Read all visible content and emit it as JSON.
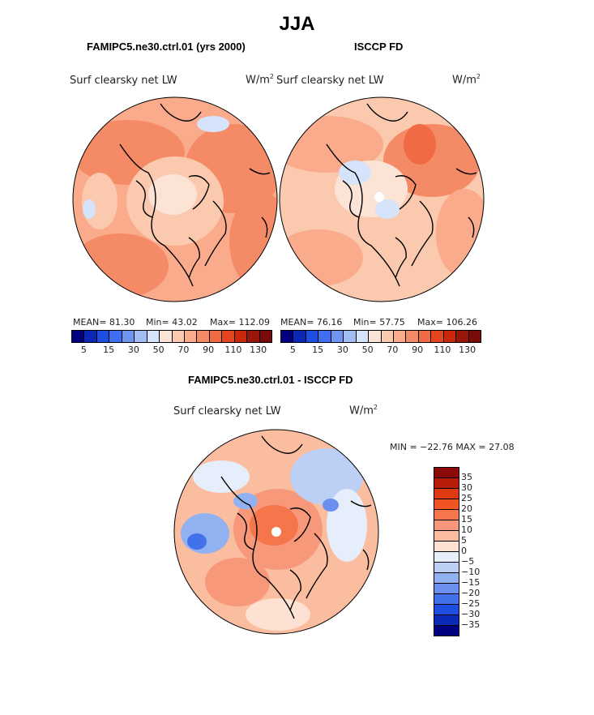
{
  "title": "JJA",
  "panels": [
    {
      "title": "FAMIPC5.ne30.ctrl.01 (yrs 2000)",
      "field_label": "Surf clearsky net LW",
      "units_base": "W/m",
      "units_exp": "2",
      "stats": {
        "mean": "MEAN=  81.30",
        "min": "Min=  43.02",
        "max": "Max= 112.09"
      },
      "colorbar_ticks": [
        "5",
        "15",
        "30",
        "50",
        "70",
        "90",
        "110",
        "130"
      ]
    },
    {
      "title": "ISCCP FD",
      "field_label": "Surf clearsky net LW",
      "units_base": "W/m",
      "units_exp": "2",
      "stats": {
        "mean": "MEAN=  76.16",
        "min": "Min=  57.75",
        "max": "Max= 106.26"
      },
      "colorbar_ticks": [
        "5",
        "15",
        "30",
        "50",
        "70",
        "90",
        "110",
        "130"
      ]
    }
  ],
  "difference": {
    "title": "FAMIPC5.ne30.ctrl.01 - ISCCP FD",
    "field_label": "Surf clearsky net LW",
    "units_base": "W/m",
    "units_exp": "2",
    "minmax": "MIN = −22.76 MAX =  27.08",
    "colorbar_ticks": [
      "35",
      "30",
      "25",
      "20",
      "15",
      "10",
      "5",
      "0",
      "−5",
      "−10",
      "−15",
      "−20",
      "−25",
      "−30",
      "−35"
    ]
  },
  "colors": {
    "abs_scale": [
      "#000080",
      "#0a28b4",
      "#1f4fe0",
      "#3f6ff0",
      "#6f95f0",
      "#a2bdf3",
      "#d5e3fb",
      "#fbe3d5",
      "#fbc9ae",
      "#f9ab8c",
      "#f58a66",
      "#f06a43",
      "#e5461f",
      "#c9280c",
      "#98160b",
      "#7a0b08"
    ],
    "diff_scale": [
      "#8c0a0a",
      "#b81d0a",
      "#de3a12",
      "#f05423",
      "#f5764a",
      "#f8987a",
      "#fbbd9f",
      "#fde1d2",
      "#e6eefb",
      "#bcd0f5",
      "#92b1f0",
      "#6a8fee",
      "#4271ec",
      "#1e4fe2",
      "#0b2ab8",
      "#000080"
    ],
    "land_outline": "#000000"
  }
}
